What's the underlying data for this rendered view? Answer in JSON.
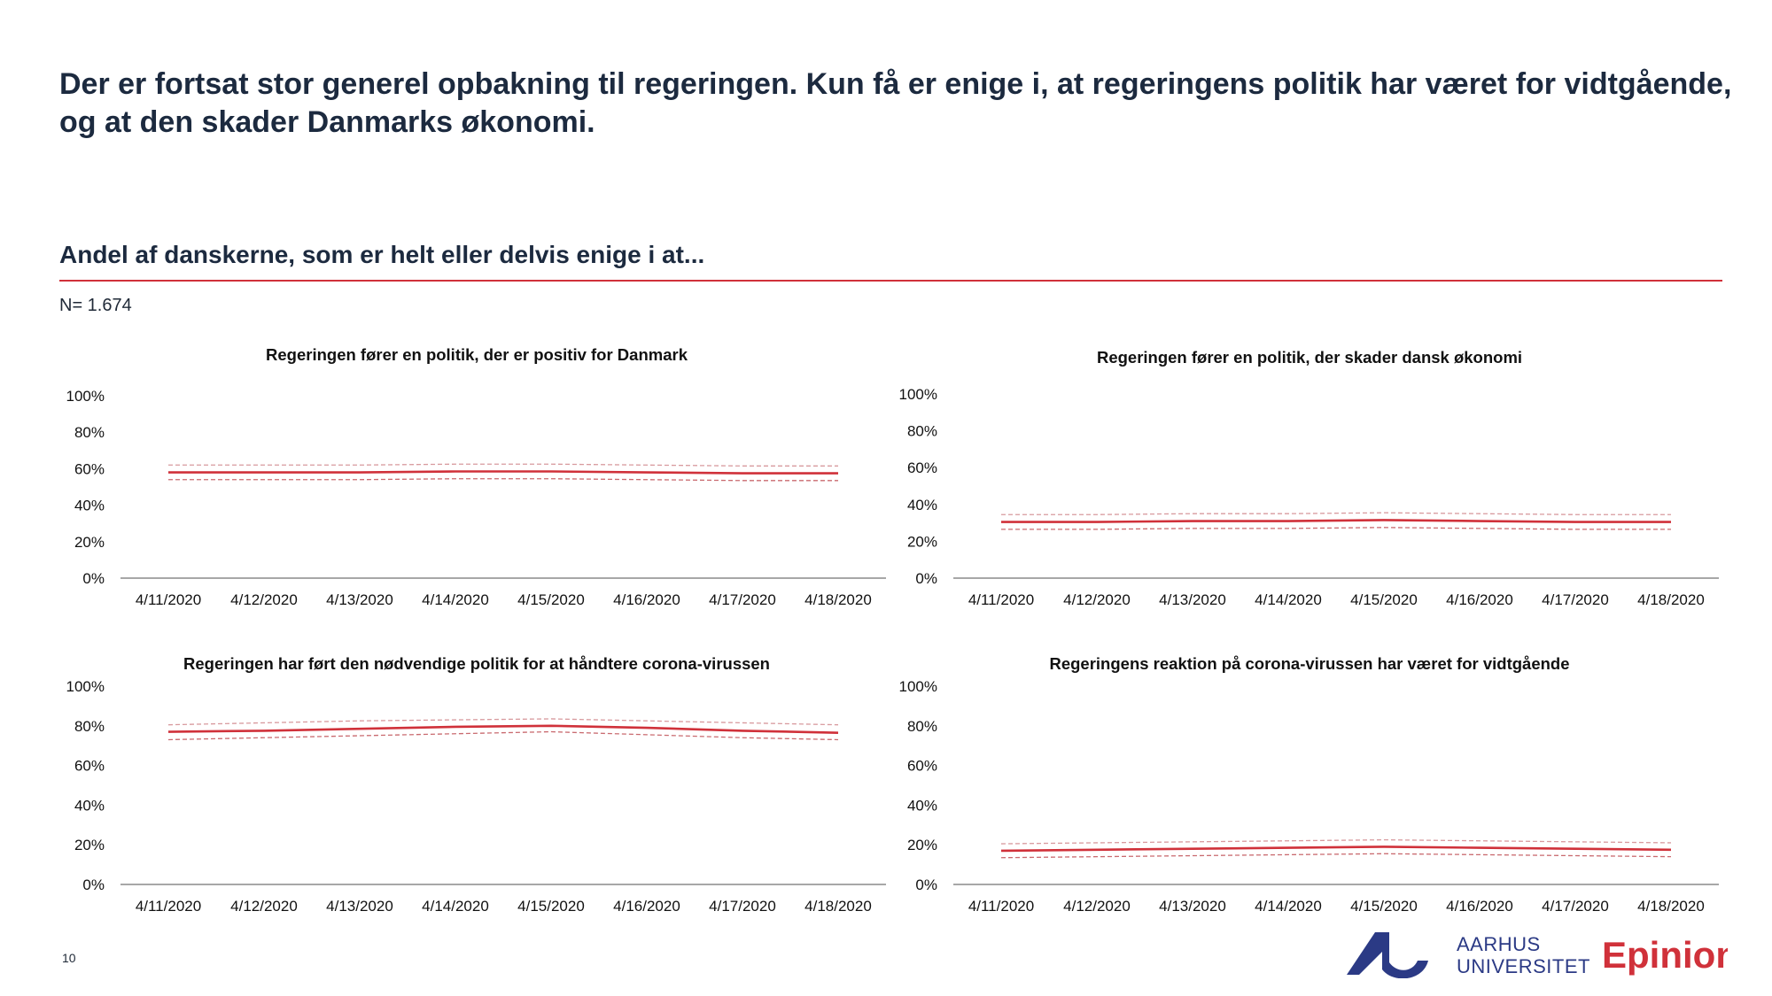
{
  "headline": "Der er fortsat stor generel opbakning til regeringen. Kun få er enige i, at regeringens politik har været for vidtgående, og at den skader Danmarks økonomi.",
  "subheadline": "Andel af danskerne, som er helt eller delvis enige i at...",
  "sample_size": "N= 1.674",
  "page_number": "10",
  "logos": {
    "aarhus_line1": "AARHUS",
    "aarhus_line2": "UNIVERSITET",
    "epinion": "Epinion"
  },
  "colors": {
    "line": "#d0313a",
    "band": "#d0313a",
    "brand_blue": "#2b3a85",
    "text": "#1c2a3f"
  },
  "chart_data": [
    {
      "type": "line",
      "title": "Regeringen fører en politik, der er positiv for Danmark",
      "categories": [
        "4/11/2020",
        "4/12/2020",
        "4/13/2020",
        "4/14/2020",
        "4/15/2020",
        "4/16/2020",
        "4/17/2020",
        "4/18/2020"
      ],
      "yticks": [
        "0%",
        "20%",
        "40%",
        "60%",
        "80%",
        "100%"
      ],
      "ylim": [
        0,
        100
      ],
      "series": [
        {
          "role": "estimate",
          "values": [
            58,
            58,
            58,
            58.5,
            58.5,
            58,
            57.5,
            57.5
          ]
        },
        {
          "role": "upper",
          "values": [
            62,
            62,
            62,
            62.5,
            62.5,
            62,
            61.5,
            61.5
          ]
        },
        {
          "role": "lower",
          "values": [
            54,
            54,
            54,
            54.5,
            54.5,
            54,
            53.5,
            53.5
          ]
        }
      ]
    },
    {
      "type": "line",
      "title": "Regeringen fører en politik, der skader dansk økonomi",
      "categories": [
        "4/11/2020",
        "4/12/2020",
        "4/13/2020",
        "4/14/2020",
        "4/15/2020",
        "4/16/2020",
        "4/17/2020",
        "4/18/2020"
      ],
      "yticks": [
        "0%",
        "20%",
        "40%",
        "60%",
        "80%",
        "100%"
      ],
      "ylim": [
        0,
        100
      ],
      "series": [
        {
          "role": "estimate",
          "values": [
            30.5,
            30.5,
            31,
            31,
            31.5,
            31,
            30.5,
            30.5
          ]
        },
        {
          "role": "upper",
          "values": [
            34.5,
            34.5,
            35,
            35,
            35.5,
            35,
            34.5,
            34.5
          ]
        },
        {
          "role": "lower",
          "values": [
            26.5,
            26.5,
            27,
            27,
            27.5,
            27,
            26.5,
            26.5
          ]
        }
      ]
    },
    {
      "type": "line",
      "title": "Regeringen har ført den nødvendige politik for at håndtere corona-virussen",
      "categories": [
        "4/11/2020",
        "4/12/2020",
        "4/13/2020",
        "4/14/2020",
        "4/15/2020",
        "4/16/2020",
        "4/17/2020",
        "4/18/2020"
      ],
      "yticks": [
        "0%",
        "20%",
        "40%",
        "60%",
        "80%",
        "100%"
      ],
      "ylim": [
        0,
        100
      ],
      "series": [
        {
          "role": "estimate",
          "values": [
            77,
            77.5,
            78.5,
            79.5,
            80,
            79,
            77.5,
            76.5
          ]
        },
        {
          "role": "upper",
          "values": [
            80.5,
            81.5,
            82.5,
            83,
            83.5,
            82.5,
            81.5,
            80.5
          ]
        },
        {
          "role": "lower",
          "values": [
            73,
            74,
            75,
            76,
            77,
            75.5,
            74,
            73
          ]
        }
      ]
    },
    {
      "type": "line",
      "title": "Regeringens reaktion på corona-virussen har været for vidtgående",
      "categories": [
        "4/11/2020",
        "4/12/2020",
        "4/13/2020",
        "4/14/2020",
        "4/15/2020",
        "4/16/2020",
        "4/17/2020",
        "4/18/2020"
      ],
      "yticks": [
        "0%",
        "20%",
        "40%",
        "60%",
        "80%",
        "100%"
      ],
      "ylim": [
        0,
        100
      ],
      "series": [
        {
          "role": "estimate",
          "values": [
            17,
            17.5,
            18,
            18.5,
            19,
            18.5,
            18,
            17.5
          ]
        },
        {
          "role": "upper",
          "values": [
            20.5,
            21,
            21.5,
            22,
            22.5,
            22,
            21.5,
            21
          ]
        },
        {
          "role": "lower",
          "values": [
            13.5,
            14,
            14.5,
            15,
            15.5,
            15,
            14.5,
            14
          ]
        }
      ]
    }
  ]
}
